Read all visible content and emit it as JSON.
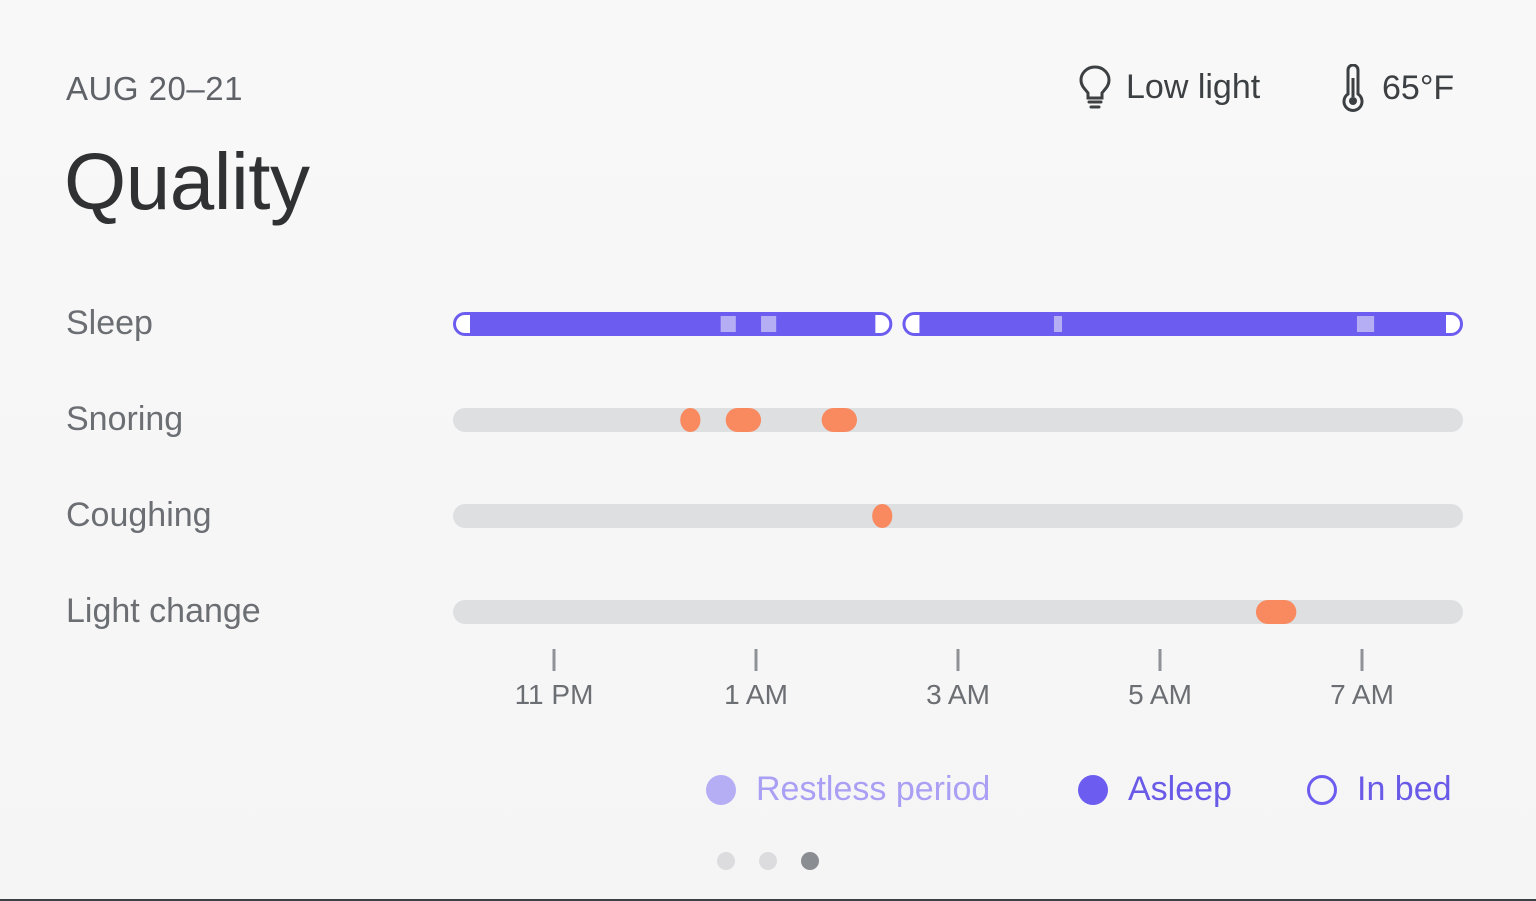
{
  "header": {
    "date": "AUG 20–21",
    "title": "Quality"
  },
  "environment": {
    "light": {
      "icon": "lightbulb-icon",
      "label": "Low light"
    },
    "temperature": {
      "icon": "thermometer-icon",
      "label": "65°F"
    }
  },
  "rows": [
    "Sleep",
    "Snoring",
    "Coughing",
    "Light change"
  ],
  "chart_data": {
    "type": "timeline",
    "time_axis": {
      "start_hour": 22.0,
      "end_hour": 32.0,
      "ticks": [
        "11 PM",
        "1 AM",
        "3 AM",
        "5 AM",
        "7 AM"
      ],
      "tick_hours": [
        23,
        25,
        27,
        29,
        31
      ]
    },
    "sleep": {
      "segments": [
        {
          "start": 22.0,
          "end": 26.35
        },
        {
          "start": 26.45,
          "end": 32.0
        }
      ],
      "restless_periods": [
        {
          "start": 24.65,
          "end": 24.8
        },
        {
          "start": 25.05,
          "end": 25.2
        },
        {
          "start": 27.95,
          "end": 28.03
        },
        {
          "start": 30.95,
          "end": 31.12
        }
      ]
    },
    "snoring": [
      {
        "start": 24.25,
        "end": 24.45
      },
      {
        "start": 24.7,
        "end": 25.05
      },
      {
        "start": 25.65,
        "end": 26.0
      }
    ],
    "coughing": [
      {
        "start": 26.15,
        "end": 26.35
      }
    ],
    "light_change": [
      {
        "start": 29.95,
        "end": 30.35
      }
    ]
  },
  "legend": {
    "restless": "Restless period",
    "asleep": "Asleep",
    "in_bed": "In bed"
  },
  "colors": {
    "asleep": "#6c5cf0",
    "restless": "#b6aef5",
    "event": "#f98a5f",
    "track": "#dedfe1",
    "tick": "#8e9196"
  },
  "pager": {
    "count": 3,
    "active": 3
  }
}
